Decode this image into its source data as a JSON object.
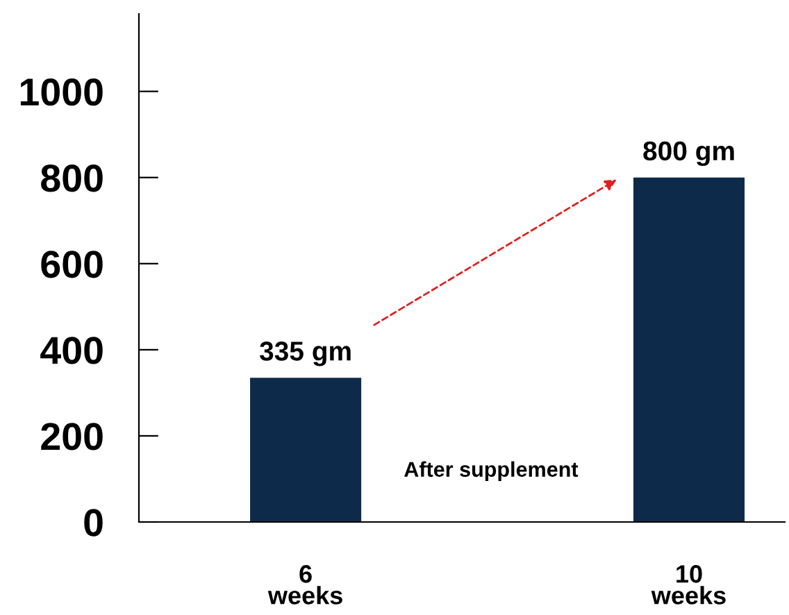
{
  "chart_data": {
    "type": "bar",
    "categories": [
      "6\nweeks",
      "10\nweeks"
    ],
    "values": [
      335,
      800
    ],
    "color": "#0d2a4a",
    "value_labels": [
      "335 gm",
      "800 gm"
    ],
    "ylim": [
      0,
      1180
    ],
    "yticks": [
      0,
      200,
      400,
      600,
      800,
      1000
    ],
    "annotations": [
      "After supplement"
    ],
    "grid": false,
    "legend": false
  }
}
